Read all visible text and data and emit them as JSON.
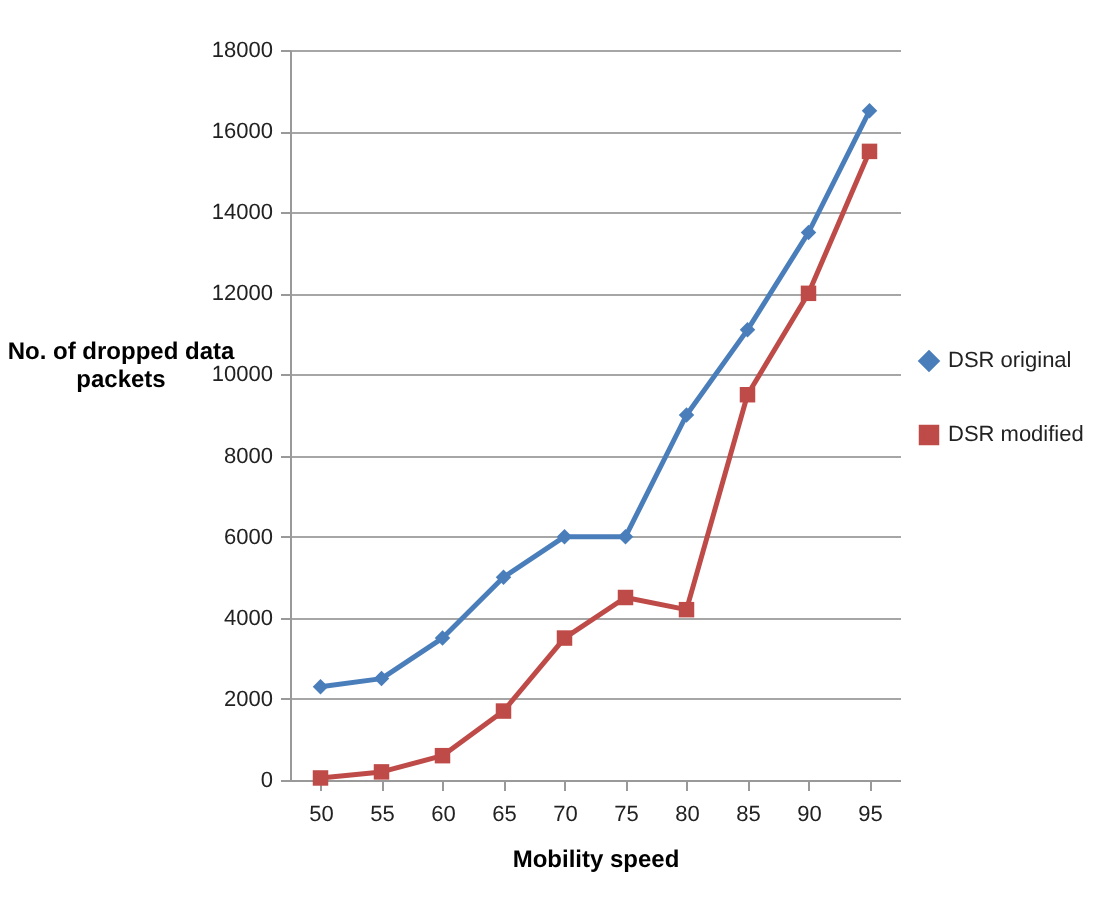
{
  "chart_data": {
    "type": "line",
    "xlabel": "Mobility speed",
    "ylabel": "No. of dropped data packets",
    "categories": [
      "50",
      "55",
      "60",
      "65",
      "70",
      "75",
      "80",
      "85",
      "90",
      "95"
    ],
    "series": [
      {
        "name": "DSR original",
        "color": "#4a7ebb",
        "marker": "diamond",
        "values": [
          2300,
          2500,
          3500,
          5000,
          6000,
          6000,
          9000,
          11100,
          13500,
          16500
        ]
      },
      {
        "name": "DSR modified",
        "color": "#be4b48",
        "marker": "square",
        "values": [
          50,
          200,
          600,
          1700,
          3500,
          4500,
          4200,
          9500,
          12000,
          15500
        ]
      }
    ],
    "ylim": [
      0,
      18000
    ],
    "yticks": [
      0,
      2000,
      4000,
      6000,
      8000,
      10000,
      12000,
      14000,
      16000,
      18000
    ],
    "grid": "y",
    "legend": "right",
    "line_style": "solid"
  }
}
